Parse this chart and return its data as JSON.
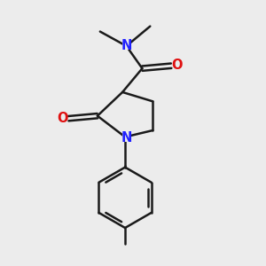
{
  "background_color": "#ececec",
  "bond_color": "#1a1a1a",
  "nitrogen_color": "#2020ff",
  "oxygen_color": "#e01010",
  "line_width": 1.8,
  "figsize": [
    3.0,
    3.0
  ],
  "dpi": 100,
  "xlim": [
    0,
    10
  ],
  "ylim": [
    0,
    10
  ]
}
